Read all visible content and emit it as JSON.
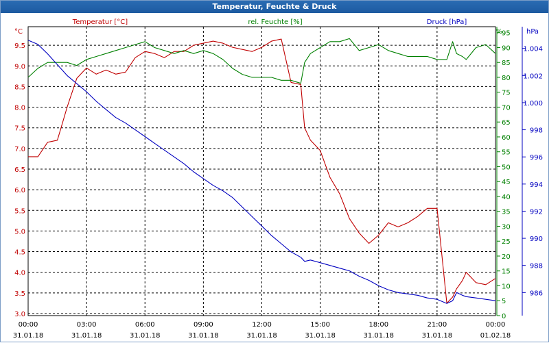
{
  "window": {
    "title": "Temperatur, Feuchte & Druck"
  },
  "colors": {
    "temperature": "#c00000",
    "humidity": "#008000",
    "pressure": "#0000c0",
    "grid": "#000000",
    "text": "#000000"
  },
  "chart_data": {
    "type": "line",
    "title": "Temperatur, Feuchte & Druck",
    "grid": true,
    "x_ticks": [
      {
        "time": "00:00",
        "date": "31.01.18"
      },
      {
        "time": "03:00",
        "date": "31.01.18"
      },
      {
        "time": "06:00",
        "date": "31.01.18"
      },
      {
        "time": "09:00",
        "date": "31.01.18"
      },
      {
        "time": "12:00",
        "date": "31.01.18"
      },
      {
        "time": "15:00",
        "date": "31.01.18"
      },
      {
        "time": "18:00",
        "date": "31.01.18"
      },
      {
        "time": "21:00",
        "date": "31.01.18"
      },
      {
        "time": "00:00",
        "date": "01.02.18"
      }
    ],
    "axes": {
      "temperature": {
        "label": "Temperatur [°C]",
        "unit": "°C",
        "range": [
          2.95,
          9.95
        ],
        "ticks": [
          "3.0",
          "3.5",
          "4.0",
          "4.5",
          "5.0",
          "5.5",
          "6.0",
          "6.5",
          "7.0",
          "7.5",
          "8.0",
          "8.5",
          "9.0",
          "9.5"
        ]
      },
      "humidity": {
        "label": "rel. Feuchte [%]",
        "unit": "%",
        "range": [
          0,
          97
        ],
        "ticks": [
          "0",
          "5",
          "10",
          "15",
          "20",
          "25",
          "30",
          "35",
          "40",
          "45",
          "50",
          "55",
          "60",
          "65",
          "70",
          "75",
          "80",
          "85",
          "90",
          "95"
        ]
      },
      "pressure": {
        "label": "Druck [hPa]",
        "unit": "hPa",
        "range": [
          984.3,
          1005.6
        ],
        "ticks": [
          "986",
          "988",
          "990",
          "992",
          "994",
          "996",
          "998",
          "1.000",
          "1.002",
          "1.004"
        ]
      }
    },
    "series": [
      {
        "name": "Temperatur [°C]",
        "axis": "temperature",
        "color": "#c00000",
        "x": [
          0,
          0.5,
          1,
          1.5,
          2,
          2.5,
          3,
          3.5,
          4,
          4.5,
          5,
          5.5,
          6,
          6.5,
          7,
          7.5,
          8,
          8.5,
          9,
          9.5,
          10,
          10.5,
          11,
          11.5,
          12,
          12.5,
          13,
          13.5,
          14,
          14.2,
          14.5,
          15,
          15.5,
          16,
          16.5,
          17,
          17.5,
          18,
          18.5,
          19,
          19.5,
          20,
          20.5,
          21,
          21.5,
          21.8,
          22,
          22.3,
          22.5,
          23,
          23.5,
          24
        ],
        "values": [
          6.8,
          6.8,
          7.15,
          7.2,
          8.0,
          8.7,
          8.95,
          8.8,
          8.9,
          8.8,
          8.85,
          9.2,
          9.35,
          9.3,
          9.2,
          9.35,
          9.35,
          9.5,
          9.55,
          9.6,
          9.55,
          9.45,
          9.4,
          9.35,
          9.45,
          9.6,
          9.65,
          8.6,
          8.55,
          7.5,
          7.2,
          6.95,
          6.3,
          5.9,
          5.3,
          4.95,
          4.7,
          4.9,
          5.2,
          5.1,
          5.2,
          5.35,
          5.55,
          5.55,
          3.25,
          3.4,
          3.6,
          3.8,
          4.0,
          3.75,
          3.7,
          3.85
        ]
      },
      {
        "name": "rel. Feuchte [%]",
        "axis": "humidity",
        "color": "#008000",
        "x": [
          0,
          0.5,
          1,
          1.5,
          2,
          2.5,
          3,
          3.5,
          4,
          4.5,
          5,
          5.5,
          6,
          6.5,
          7,
          7.5,
          8,
          8.5,
          9,
          9.5,
          10,
          10.5,
          11,
          11.5,
          12,
          12.5,
          13,
          13.5,
          14,
          14.2,
          14.5,
          15,
          15.5,
          16,
          16.5,
          17,
          17.5,
          18,
          18.5,
          19,
          19.5,
          20,
          20.5,
          21,
          21.5,
          21.8,
          22,
          22.3,
          22.5,
          23,
          23.5,
          24
        ],
        "values": [
          80,
          83,
          85,
          85,
          85,
          84,
          86,
          87,
          88,
          89,
          90,
          91,
          92,
          90,
          89,
          88,
          89,
          88,
          89,
          88,
          86,
          83,
          81,
          80,
          80,
          80,
          79,
          79,
          78,
          85,
          88,
          90,
          92,
          92,
          93,
          89,
          90,
          91,
          89,
          88,
          87,
          87,
          87,
          86,
          86,
          92,
          88,
          87,
          86,
          90,
          91,
          88
        ]
      },
      {
        "name": "Druck [hPa]",
        "axis": "pressure",
        "color": "#0000c0",
        "x": [
          0,
          0.5,
          1,
          1.5,
          2,
          2.5,
          3,
          3.5,
          4,
          4.5,
          5,
          5.5,
          6,
          6.5,
          7,
          7.5,
          8,
          8.5,
          9,
          9.5,
          10,
          10.5,
          11,
          11.5,
          12,
          12.5,
          13,
          13.5,
          14,
          14.2,
          14.5,
          15,
          15.5,
          16,
          16.5,
          17,
          17.5,
          18,
          18.5,
          19,
          19.5,
          20,
          20.5,
          21,
          21.5,
          21.8,
          22,
          22.3,
          22.5,
          23,
          23.5,
          24
        ],
        "values": [
          1004.6,
          1004.3,
          1003.6,
          1002.8,
          1002.0,
          1001.4,
          1000.8,
          1000.1,
          999.5,
          998.9,
          998.5,
          998.0,
          997.5,
          997.0,
          996.5,
          996.0,
          995.5,
          994.9,
          994.4,
          993.9,
          993.5,
          993.0,
          992.3,
          991.6,
          990.9,
          990.2,
          989.6,
          989.0,
          988.6,
          988.3,
          988.4,
          988.2,
          988.0,
          987.8,
          987.6,
          987.2,
          986.9,
          986.5,
          986.2,
          986.0,
          985.9,
          985.8,
          985.6,
          985.5,
          985.2,
          985.4,
          986.0,
          985.8,
          985.7,
          985.6,
          985.5,
          985.4
        ]
      }
    ]
  }
}
